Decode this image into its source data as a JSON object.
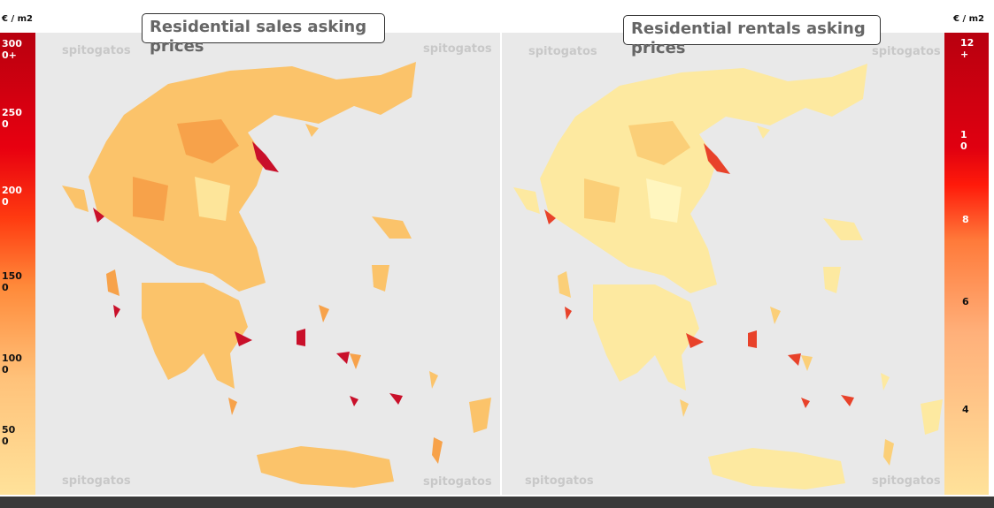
{
  "left_legend": {
    "unit": "€ / m2",
    "labels": [
      "3000+",
      "2500",
      "2000",
      "1500",
      "1000",
      "500"
    ]
  },
  "right_legend": {
    "unit": "€ / m2",
    "labels": [
      "12+",
      "10",
      "8",
      "6",
      "4"
    ]
  },
  "maps": [
    {
      "title": "Residential sales asking prices",
      "watermark": "spitogatos"
    },
    {
      "title": "Residential rentals asking prices",
      "watermark": "spitogatos"
    }
  ]
}
